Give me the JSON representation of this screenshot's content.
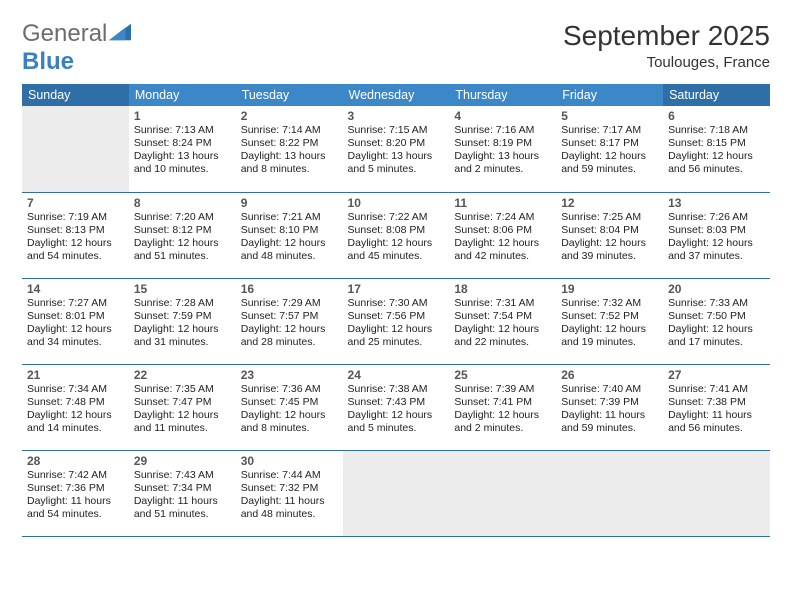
{
  "logo": {
    "text_a": "General",
    "text_b": "Blue"
  },
  "title": {
    "month": "September 2025",
    "location": "Toulouges, France"
  },
  "colors": {
    "header_blue": "#3b87c8",
    "header_darkblue": "#2f6fa8",
    "row_border": "#2f6fa8",
    "empty_cell": "#ececec"
  },
  "dayHeaders": [
    "Sunday",
    "Monday",
    "Tuesday",
    "Wednesday",
    "Thursday",
    "Friday",
    "Saturday"
  ],
  "weeks": [
    [
      null,
      {
        "n": "1",
        "sr": "Sunrise: 7:13 AM",
        "ss": "Sunset: 8:24 PM",
        "dl": "Daylight: 13 hours and 10 minutes."
      },
      {
        "n": "2",
        "sr": "Sunrise: 7:14 AM",
        "ss": "Sunset: 8:22 PM",
        "dl": "Daylight: 13 hours and 8 minutes."
      },
      {
        "n": "3",
        "sr": "Sunrise: 7:15 AM",
        "ss": "Sunset: 8:20 PM",
        "dl": "Daylight: 13 hours and 5 minutes."
      },
      {
        "n": "4",
        "sr": "Sunrise: 7:16 AM",
        "ss": "Sunset: 8:19 PM",
        "dl": "Daylight: 13 hours and 2 minutes."
      },
      {
        "n": "5",
        "sr": "Sunrise: 7:17 AM",
        "ss": "Sunset: 8:17 PM",
        "dl": "Daylight: 12 hours and 59 minutes."
      },
      {
        "n": "6",
        "sr": "Sunrise: 7:18 AM",
        "ss": "Sunset: 8:15 PM",
        "dl": "Daylight: 12 hours and 56 minutes."
      }
    ],
    [
      {
        "n": "7",
        "sr": "Sunrise: 7:19 AM",
        "ss": "Sunset: 8:13 PM",
        "dl": "Daylight: 12 hours and 54 minutes."
      },
      {
        "n": "8",
        "sr": "Sunrise: 7:20 AM",
        "ss": "Sunset: 8:12 PM",
        "dl": "Daylight: 12 hours and 51 minutes."
      },
      {
        "n": "9",
        "sr": "Sunrise: 7:21 AM",
        "ss": "Sunset: 8:10 PM",
        "dl": "Daylight: 12 hours and 48 minutes."
      },
      {
        "n": "10",
        "sr": "Sunrise: 7:22 AM",
        "ss": "Sunset: 8:08 PM",
        "dl": "Daylight: 12 hours and 45 minutes."
      },
      {
        "n": "11",
        "sr": "Sunrise: 7:24 AM",
        "ss": "Sunset: 8:06 PM",
        "dl": "Daylight: 12 hours and 42 minutes."
      },
      {
        "n": "12",
        "sr": "Sunrise: 7:25 AM",
        "ss": "Sunset: 8:04 PM",
        "dl": "Daylight: 12 hours and 39 minutes."
      },
      {
        "n": "13",
        "sr": "Sunrise: 7:26 AM",
        "ss": "Sunset: 8:03 PM",
        "dl": "Daylight: 12 hours and 37 minutes."
      }
    ],
    [
      {
        "n": "14",
        "sr": "Sunrise: 7:27 AM",
        "ss": "Sunset: 8:01 PM",
        "dl": "Daylight: 12 hours and 34 minutes."
      },
      {
        "n": "15",
        "sr": "Sunrise: 7:28 AM",
        "ss": "Sunset: 7:59 PM",
        "dl": "Daylight: 12 hours and 31 minutes."
      },
      {
        "n": "16",
        "sr": "Sunrise: 7:29 AM",
        "ss": "Sunset: 7:57 PM",
        "dl": "Daylight: 12 hours and 28 minutes."
      },
      {
        "n": "17",
        "sr": "Sunrise: 7:30 AM",
        "ss": "Sunset: 7:56 PM",
        "dl": "Daylight: 12 hours and 25 minutes."
      },
      {
        "n": "18",
        "sr": "Sunrise: 7:31 AM",
        "ss": "Sunset: 7:54 PM",
        "dl": "Daylight: 12 hours and 22 minutes."
      },
      {
        "n": "19",
        "sr": "Sunrise: 7:32 AM",
        "ss": "Sunset: 7:52 PM",
        "dl": "Daylight: 12 hours and 19 minutes."
      },
      {
        "n": "20",
        "sr": "Sunrise: 7:33 AM",
        "ss": "Sunset: 7:50 PM",
        "dl": "Daylight: 12 hours and 17 minutes."
      }
    ],
    [
      {
        "n": "21",
        "sr": "Sunrise: 7:34 AM",
        "ss": "Sunset: 7:48 PM",
        "dl": "Daylight: 12 hours and 14 minutes."
      },
      {
        "n": "22",
        "sr": "Sunrise: 7:35 AM",
        "ss": "Sunset: 7:47 PM",
        "dl": "Daylight: 12 hours and 11 minutes."
      },
      {
        "n": "23",
        "sr": "Sunrise: 7:36 AM",
        "ss": "Sunset: 7:45 PM",
        "dl": "Daylight: 12 hours and 8 minutes."
      },
      {
        "n": "24",
        "sr": "Sunrise: 7:38 AM",
        "ss": "Sunset: 7:43 PM",
        "dl": "Daylight: 12 hours and 5 minutes."
      },
      {
        "n": "25",
        "sr": "Sunrise: 7:39 AM",
        "ss": "Sunset: 7:41 PM",
        "dl": "Daylight: 12 hours and 2 minutes."
      },
      {
        "n": "26",
        "sr": "Sunrise: 7:40 AM",
        "ss": "Sunset: 7:39 PM",
        "dl": "Daylight: 11 hours and 59 minutes."
      },
      {
        "n": "27",
        "sr": "Sunrise: 7:41 AM",
        "ss": "Sunset: 7:38 PM",
        "dl": "Daylight: 11 hours and 56 minutes."
      }
    ],
    [
      {
        "n": "28",
        "sr": "Sunrise: 7:42 AM",
        "ss": "Sunset: 7:36 PM",
        "dl": "Daylight: 11 hours and 54 minutes."
      },
      {
        "n": "29",
        "sr": "Sunrise: 7:43 AM",
        "ss": "Sunset: 7:34 PM",
        "dl": "Daylight: 11 hours and 51 minutes."
      },
      {
        "n": "30",
        "sr": "Sunrise: 7:44 AM",
        "ss": "Sunset: 7:32 PM",
        "dl": "Daylight: 11 hours and 48 minutes."
      },
      null,
      null,
      null,
      null
    ]
  ]
}
